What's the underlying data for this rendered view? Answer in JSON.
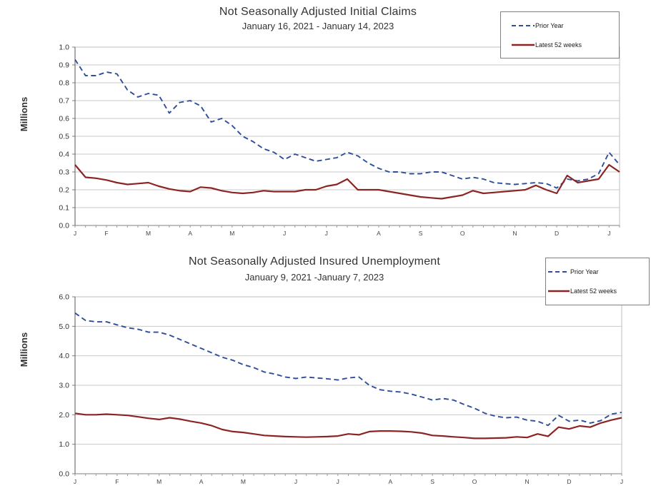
{
  "chart_data": [
    {
      "type": "line",
      "title": "Not Seasonally Adjusted Initial Claims",
      "subtitle": "January 16, 2021 - January 14, 2023",
      "ylabel": "Millions",
      "ylim": [
        0,
        1.0
      ],
      "ytick_step": 0.1,
      "ytick_decimals": 1,
      "grid": true,
      "legend_position": "top-right",
      "weeks_span": 52,
      "x_tick_labels": [
        "J",
        "F",
        "M",
        "A",
        "M",
        "J",
        "J",
        "A",
        "S",
        "O",
        "N",
        "D",
        "J"
      ],
      "x_tick_weeks": [
        0,
        3,
        7,
        11,
        15,
        20,
        24,
        29,
        33,
        37,
        42,
        46,
        51
      ],
      "series": [
        {
          "name": "Prior Year",
          "legend_label": "Prior Year",
          "color": "#2E4E9C",
          "line_style": "dashed",
          "values": [
            0.93,
            0.84,
            0.84,
            0.86,
            0.85,
            0.76,
            0.72,
            0.74,
            0.73,
            0.63,
            0.69,
            0.7,
            0.67,
            0.58,
            0.6,
            0.56,
            0.5,
            0.47,
            0.43,
            0.41,
            0.37,
            0.4,
            0.38,
            0.36,
            0.37,
            0.38,
            0.41,
            0.39,
            0.35,
            0.32,
            0.3,
            0.3,
            0.29,
            0.29,
            0.3,
            0.3,
            0.28,
            0.26,
            0.27,
            0.26,
            0.24,
            0.235,
            0.23,
            0.235,
            0.24,
            0.235,
            0.21,
            0.26,
            0.25,
            0.26,
            0.29,
            0.41,
            0.34
          ]
        },
        {
          "name": "Latest 52 weeks",
          "legend_label": "Latest 52 weeks",
          "color": "#8C2423",
          "line_style": "solid",
          "values": [
            0.34,
            0.27,
            0.265,
            0.255,
            0.24,
            0.23,
            0.235,
            0.24,
            0.22,
            0.205,
            0.195,
            0.19,
            0.215,
            0.21,
            0.195,
            0.185,
            0.18,
            0.185,
            0.195,
            0.19,
            0.19,
            0.19,
            0.2,
            0.2,
            0.22,
            0.23,
            0.26,
            0.2,
            0.2,
            0.2,
            0.19,
            0.18,
            0.17,
            0.16,
            0.155,
            0.15,
            0.16,
            0.17,
            0.195,
            0.18,
            0.185,
            0.19,
            0.195,
            0.2,
            0.225,
            0.2,
            0.18,
            0.28,
            0.24,
            0.25,
            0.26,
            0.34,
            0.3
          ]
        }
      ]
    },
    {
      "type": "line",
      "title": "Not Seasonally Adjusted Insured Unemployment",
      "subtitle": "January 9, 2021 -January 7, 2023",
      "ylabel": "Millions",
      "ylim": [
        0,
        6.0
      ],
      "ytick_step": 1.0,
      "ytick_decimals": 1,
      "grid": true,
      "legend_position": "top-right",
      "weeks_span": 52,
      "x_tick_labels": [
        "J",
        "F",
        "M",
        "A",
        "M",
        "J",
        "J",
        "A",
        "S",
        "O",
        "N",
        "D",
        "J"
      ],
      "x_tick_weeks": [
        0,
        4,
        8,
        12,
        16,
        21,
        25,
        30,
        34,
        38,
        43,
        47,
        52
      ],
      "series": [
        {
          "name": "Prior Year",
          "legend_label": "Prior Year",
          "color": "#2E4E9C",
          "line_style": "dashed",
          "values": [
            5.45,
            5.2,
            5.15,
            5.15,
            5.05,
            4.95,
            4.9,
            4.8,
            4.8,
            4.7,
            4.55,
            4.4,
            4.25,
            4.1,
            3.95,
            3.85,
            3.7,
            3.6,
            3.45,
            3.38,
            3.28,
            3.23,
            3.28,
            3.25,
            3.22,
            3.18,
            3.25,
            3.28,
            3.0,
            2.85,
            2.8,
            2.77,
            2.7,
            2.6,
            2.5,
            2.55,
            2.5,
            2.35,
            2.22,
            2.05,
            1.95,
            1.9,
            1.92,
            1.82,
            1.78,
            1.64,
            1.98,
            1.78,
            1.82,
            1.72,
            1.8,
            2.02,
            2.08
          ]
        },
        {
          "name": "Latest 52 weeks",
          "legend_label": "Latest 52 weeks",
          "color": "#8C2423",
          "line_style": "solid",
          "values": [
            2.05,
            2.0,
            2.0,
            2.02,
            2.0,
            1.98,
            1.93,
            1.88,
            1.84,
            1.9,
            1.85,
            1.78,
            1.72,
            1.63,
            1.5,
            1.43,
            1.4,
            1.35,
            1.3,
            1.28,
            1.26,
            1.25,
            1.24,
            1.25,
            1.26,
            1.28,
            1.35,
            1.32,
            1.43,
            1.45,
            1.45,
            1.44,
            1.42,
            1.38,
            1.3,
            1.28,
            1.25,
            1.23,
            1.2,
            1.2,
            1.21,
            1.22,
            1.25,
            1.23,
            1.35,
            1.27,
            1.58,
            1.52,
            1.62,
            1.58,
            1.72,
            1.82,
            1.9
          ]
        }
      ]
    }
  ]
}
